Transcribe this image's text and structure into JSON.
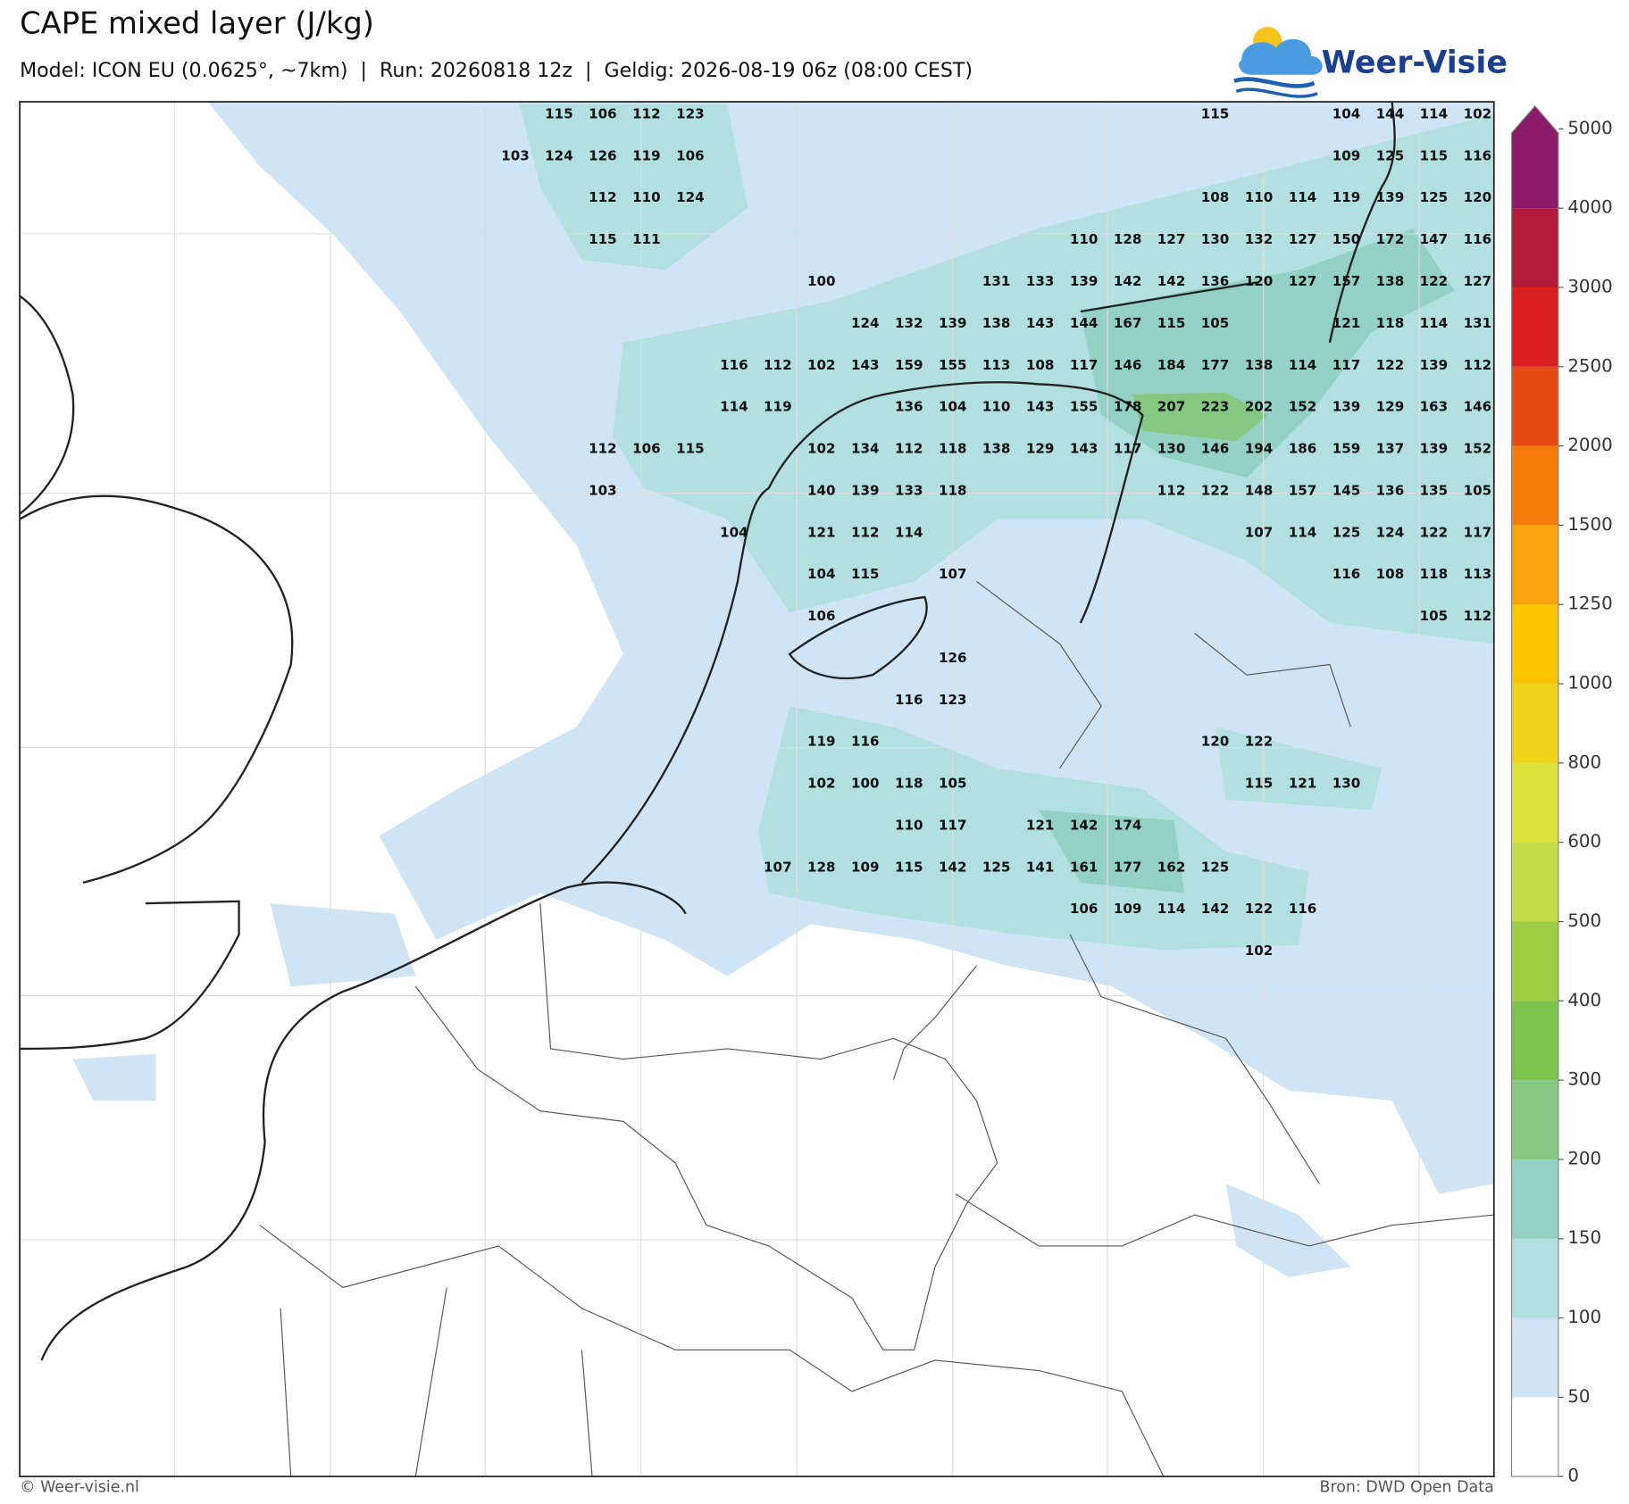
{
  "header": {
    "title": "CAPE mixed layer (J/kg)",
    "subtitle": "Model: ICON EU (0.0625°, ~7km)  |  Run: 20260818 12z  |  Geldig: 2026-08-19 06z (08:00 CEST)",
    "logo": "Weer-Visie"
  },
  "map": {
    "label_rows": [
      [
        null,
        115,
        106,
        112,
        123,
        null,
        null,
        null,
        null,
        null,
        null,
        null,
        null,
        null,
        null,
        null,
        115,
        null,
        null,
        104,
        144,
        114,
        102
      ],
      [
        103,
        124,
        126,
        119,
        106,
        null,
        null,
        null,
        null,
        null,
        null,
        null,
        null,
        null,
        null,
        null,
        null,
        null,
        null,
        109,
        125,
        115,
        116
      ],
      [
        null,
        null,
        112,
        110,
        124,
        null,
        null,
        null,
        null,
        null,
        null,
        null,
        null,
        null,
        null,
        null,
        108,
        110,
        114,
        119,
        139,
        125,
        120
      ],
      [
        null,
        null,
        115,
        111,
        null,
        null,
        null,
        null,
        null,
        null,
        null,
        null,
        null,
        110,
        128,
        127,
        130,
        132,
        127,
        150,
        172,
        147,
        116
      ],
      [
        null,
        null,
        null,
        null,
        null,
        null,
        null,
        100,
        null,
        null,
        null,
        131,
        133,
        139,
        142,
        142,
        136,
        120,
        127,
        157,
        138,
        122,
        127
      ],
      [
        null,
        null,
        null,
        null,
        null,
        null,
        null,
        null,
        124,
        132,
        139,
        138,
        143,
        144,
        167,
        115,
        105,
        null,
        null,
        121,
        118,
        114,
        131
      ],
      [
        null,
        null,
        null,
        null,
        null,
        116,
        112,
        102,
        143,
        159,
        155,
        113,
        108,
        117,
        146,
        184,
        177,
        138,
        114,
        117,
        122,
        139,
        112
      ],
      [
        null,
        null,
        null,
        null,
        null,
        114,
        119,
        null,
        null,
        136,
        104,
        110,
        143,
        155,
        178,
        207,
        223,
        202,
        152,
        139,
        129,
        163,
        146
      ],
      [
        null,
        null,
        112,
        106,
        115,
        null,
        null,
        102,
        134,
        112,
        118,
        138,
        129,
        143,
        117,
        130,
        146,
        194,
        186,
        159,
        137,
        139,
        152
      ],
      [
        null,
        null,
        103,
        null,
        null,
        null,
        null,
        140,
        139,
        133,
        118,
        null,
        null,
        null,
        null,
        112,
        122,
        148,
        157,
        145,
        136,
        135,
        105
      ],
      [
        null,
        null,
        null,
        null,
        null,
        104,
        null,
        121,
        112,
        114,
        null,
        null,
        null,
        null,
        null,
        null,
        null,
        107,
        114,
        125,
        124,
        122,
        117
      ],
      [
        null,
        null,
        null,
        null,
        null,
        null,
        null,
        104,
        115,
        null,
        107,
        null,
        null,
        null,
        null,
        null,
        null,
        null,
        null,
        116,
        108,
        118,
        113
      ],
      [
        null,
        null,
        null,
        null,
        null,
        null,
        null,
        106,
        null,
        null,
        null,
        null,
        null,
        null,
        null,
        null,
        null,
        null,
        null,
        null,
        null,
        105,
        112
      ],
      [
        null,
        null,
        null,
        null,
        null,
        null,
        null,
        null,
        null,
        null,
        126,
        null,
        null,
        null,
        null,
        null,
        null,
        null,
        null,
        null,
        null,
        null,
        null
      ],
      [
        null,
        null,
        null,
        null,
        null,
        null,
        null,
        null,
        null,
        116,
        123,
        null,
        null,
        null,
        null,
        null,
        null,
        null,
        null,
        null,
        null,
        null,
        null
      ],
      [
        null,
        null,
        null,
        null,
        null,
        null,
        null,
        119,
        116,
        null,
        null,
        null,
        null,
        null,
        null,
        null,
        120,
        122,
        null,
        null,
        null,
        null,
        null
      ],
      [
        null,
        null,
        null,
        null,
        null,
        null,
        null,
        102,
        100,
        118,
        105,
        null,
        null,
        null,
        null,
        null,
        null,
        115,
        121,
        130,
        null,
        null,
        null
      ],
      [
        null,
        null,
        null,
        null,
        null,
        null,
        null,
        null,
        null,
        110,
        117,
        null,
        121,
        142,
        174,
        null,
        null,
        null,
        null,
        null,
        null,
        null,
        null
      ],
      [
        null,
        null,
        null,
        null,
        null,
        null,
        107,
        128,
        109,
        115,
        142,
        125,
        141,
        161,
        177,
        162,
        125,
        null,
        null,
        null,
        null,
        null,
        null
      ],
      [
        null,
        null,
        null,
        null,
        null,
        null,
        null,
        null,
        null,
        null,
        null,
        null,
        null,
        106,
        109,
        114,
        142,
        122,
        116,
        null,
        null,
        null,
        null
      ],
      [
        null,
        null,
        null,
        null,
        null,
        null,
        null,
        null,
        null,
        null,
        null,
        null,
        null,
        null,
        null,
        null,
        null,
        102,
        null,
        null,
        null,
        null,
        null
      ]
    ]
  },
  "colorbar": {
    "ticks": [
      0,
      50,
      100,
      150,
      200,
      300,
      400,
      500,
      600,
      800,
      1000,
      1250,
      1500,
      2000,
      2500,
      3000,
      4000,
      5000
    ],
    "colors": [
      "#ffffff",
      "#cfe5f5",
      "#b2dfe0",
      "#93d1c4",
      "#85c882",
      "#7cc34f",
      "#9ccd42",
      "#c5dc4a",
      "#dde23b",
      "#f1d21a",
      "#fbc500",
      "#faa20b",
      "#f67d0a",
      "#e54a12",
      "#da1f1f",
      "#b31a3c",
      "#8b1a6b"
    ]
  },
  "footer": {
    "left": "© Weer-visie.nl",
    "right": "Bron: DWD Open Data"
  }
}
